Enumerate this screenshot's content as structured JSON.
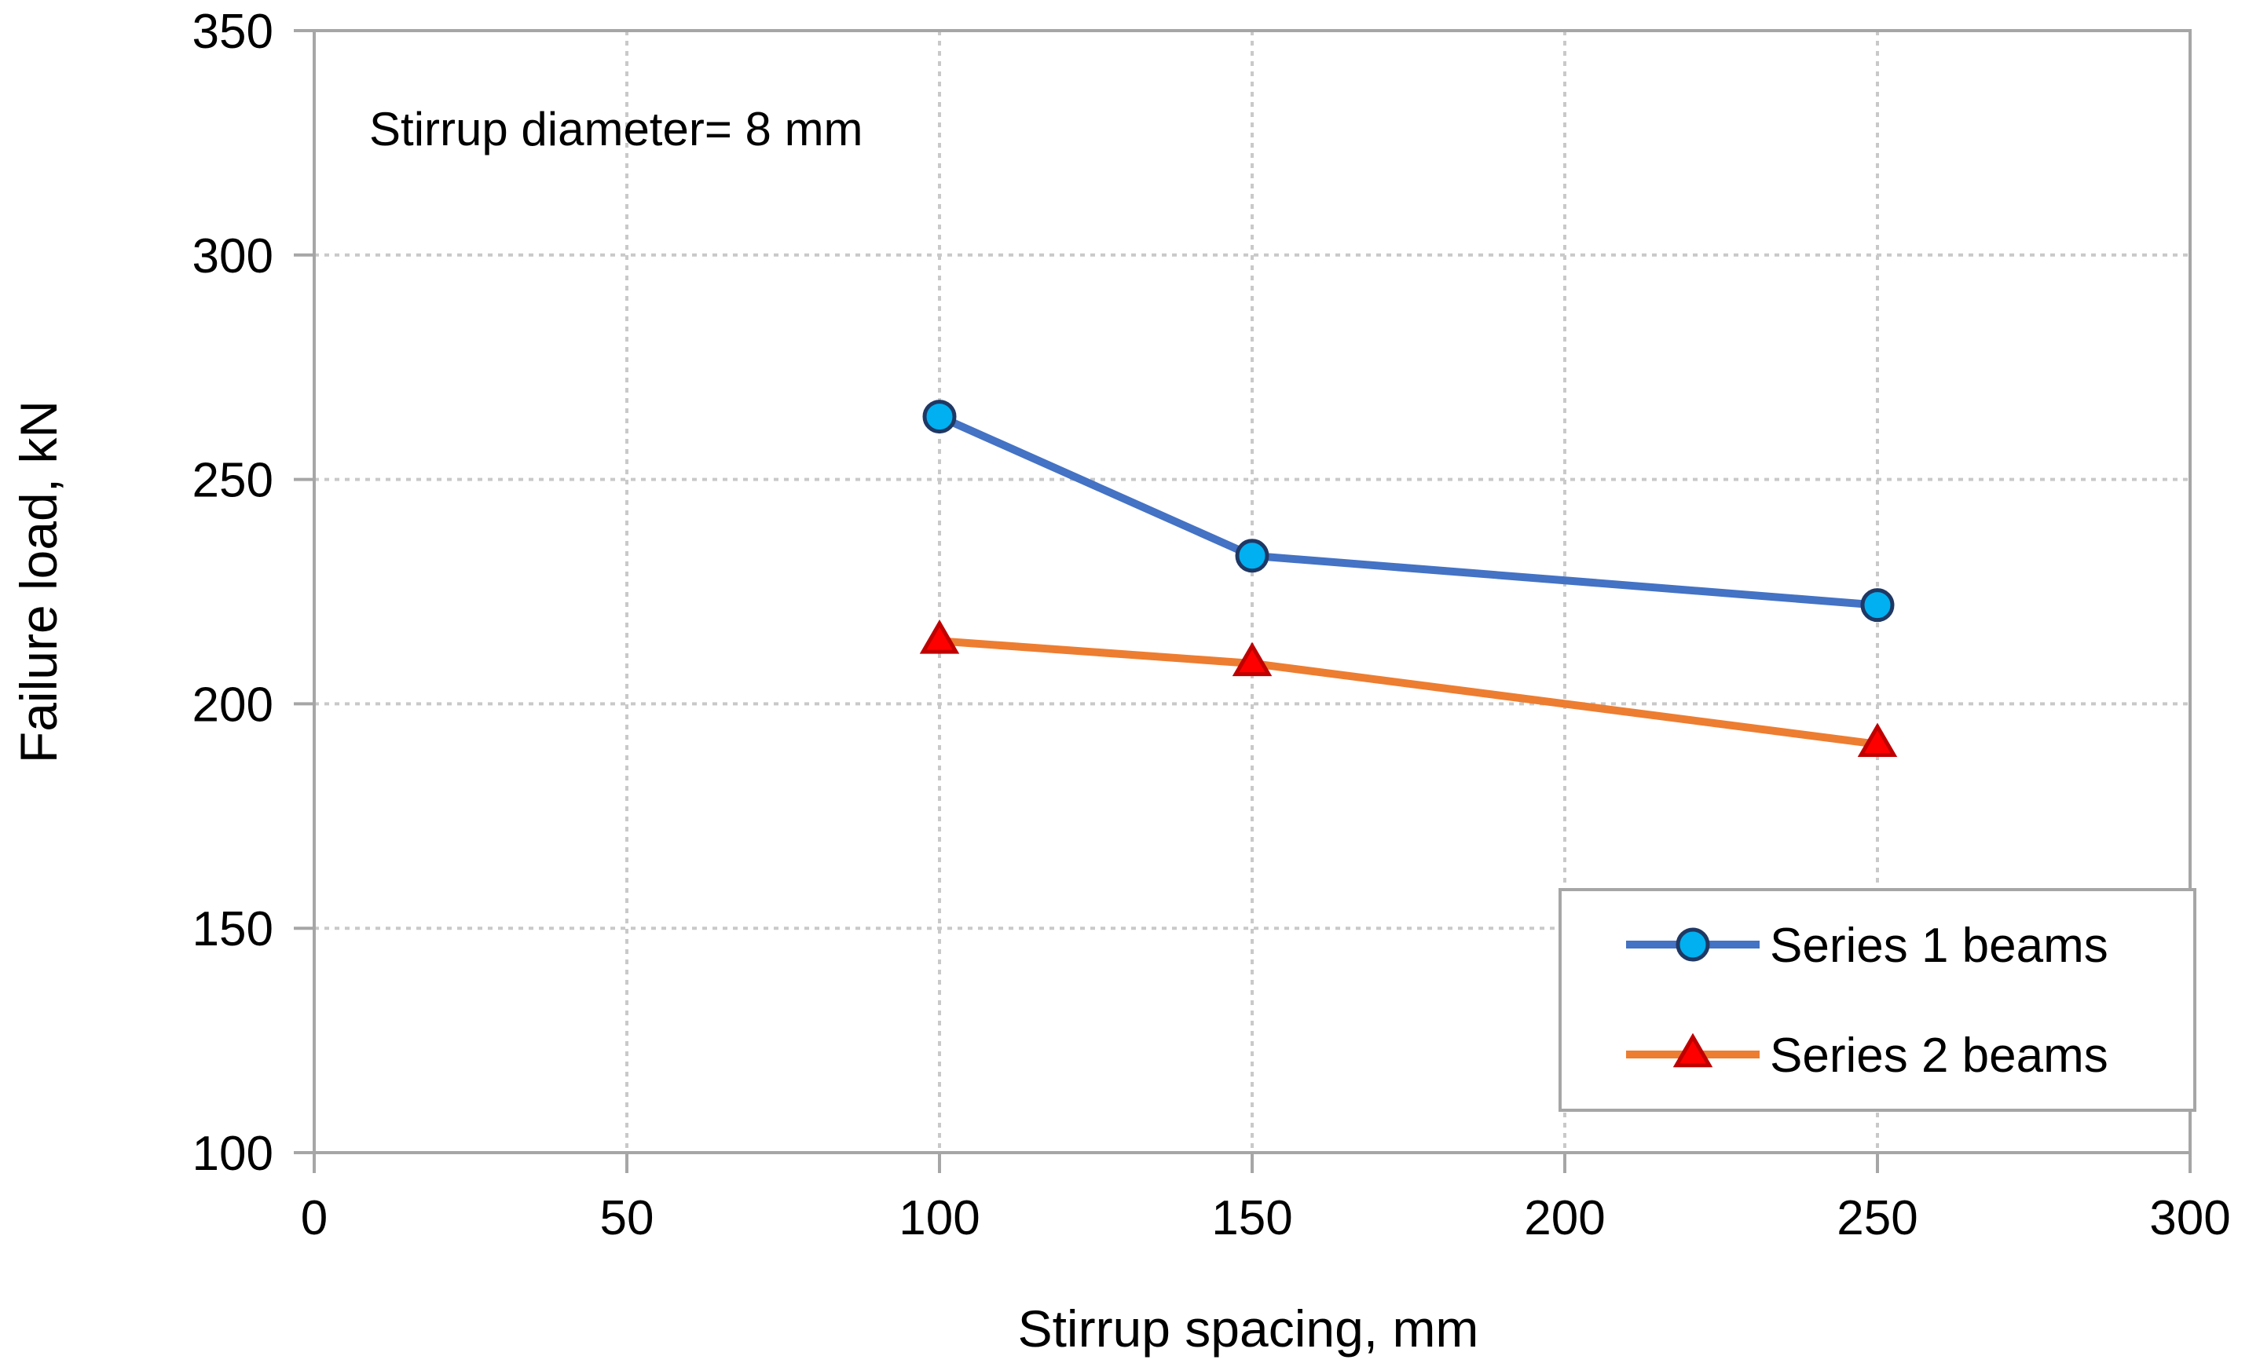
{
  "chart_data": {
    "type": "line",
    "title": "",
    "xlabel": "Stirrup spacing, mm",
    "ylabel": "Failure load, kN",
    "xlim": [
      0,
      300
    ],
    "ylim": [
      100,
      350
    ],
    "xticks": [
      0,
      50,
      100,
      150,
      200,
      250,
      300
    ],
    "yticks": [
      100,
      150,
      200,
      250,
      300,
      350
    ],
    "xtick_labels": [
      "0",
      "50",
      "100",
      "150",
      "200",
      "250",
      "300"
    ],
    "ytick_labels": [
      "100",
      "150",
      "200",
      "250",
      "300",
      "350"
    ],
    "grid": true,
    "annotation": "Stirrup diameter= 8 mm",
    "legend_position": "bottom-right",
    "series": [
      {
        "name": "Series 1 beams",
        "x": [
          100,
          150,
          250
        ],
        "values": [
          264,
          233,
          222
        ],
        "line_color": "#4472C4",
        "marker": "circle",
        "marker_fill": "#00B0F0",
        "marker_edge": "#1F3864"
      },
      {
        "name": "Series 2 beams",
        "x": [
          100,
          150,
          250
        ],
        "values": [
          214,
          209,
          191
        ],
        "line_color": "#ED7D31",
        "marker": "triangle",
        "marker_fill": "#FF0000",
        "marker_edge": "#C00000"
      }
    ]
  }
}
